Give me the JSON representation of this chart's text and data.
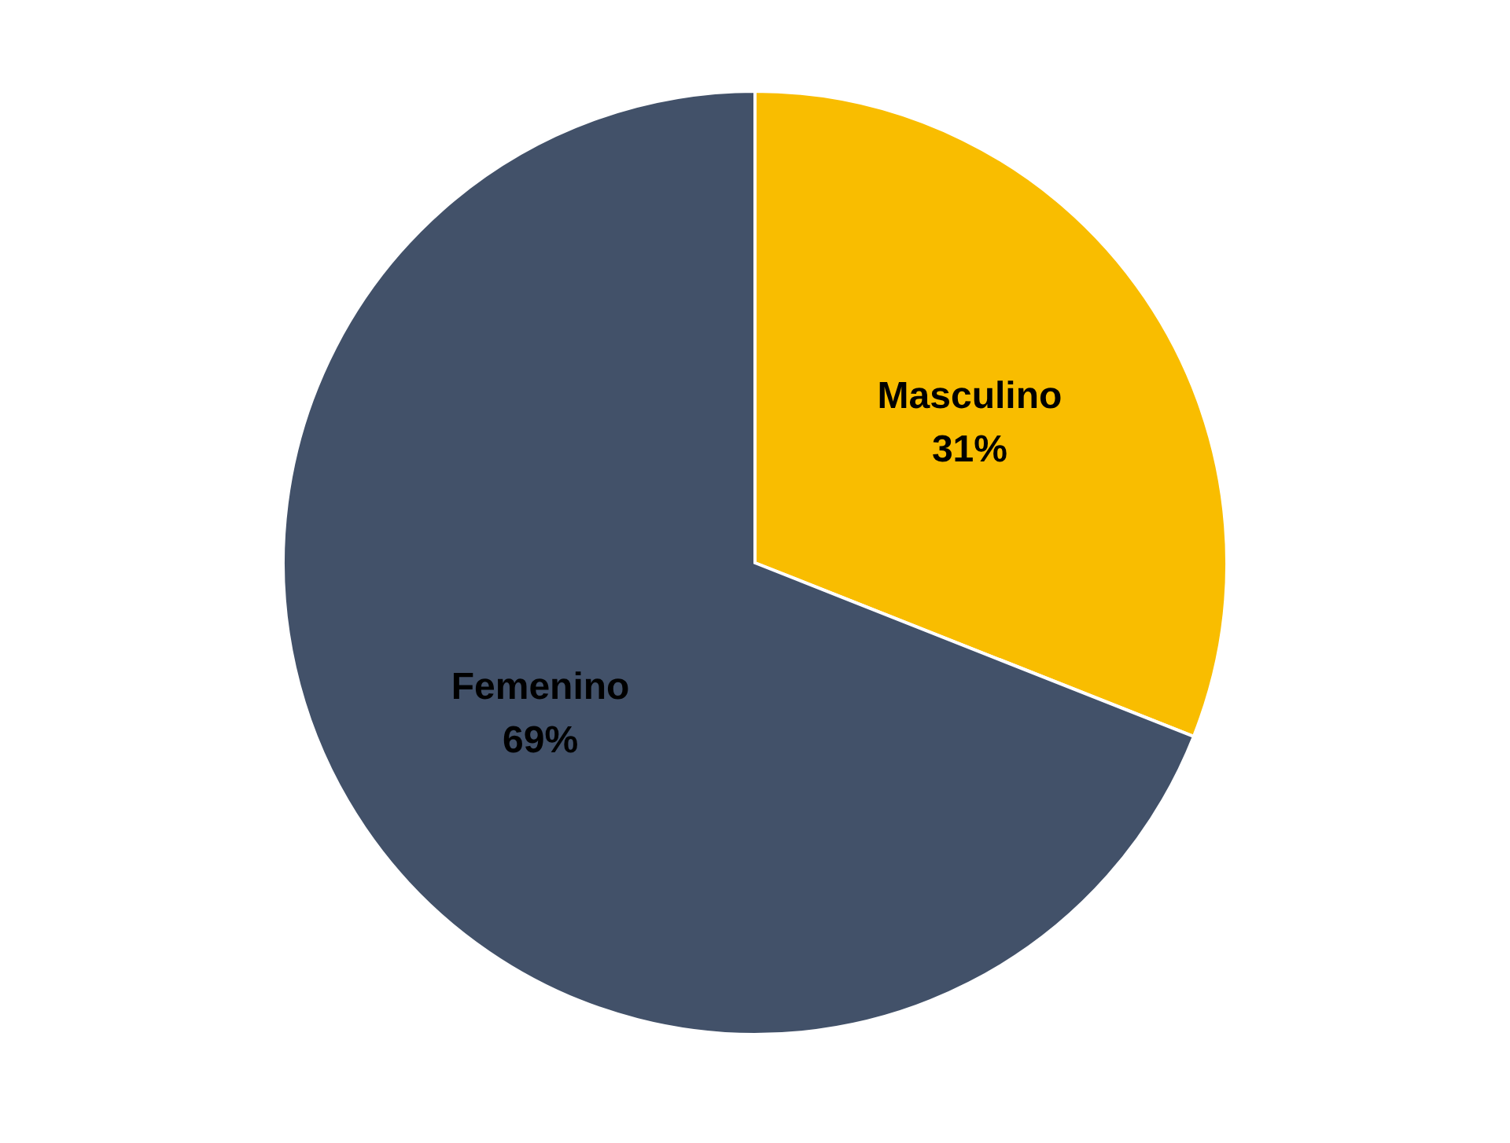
{
  "chart_data": {
    "type": "pie",
    "categories": [
      "Masculino",
      "Femenino"
    ],
    "values": [
      31,
      69
    ],
    "value_labels": [
      "31%",
      "69%"
    ],
    "colors": [
      "#f9bd00",
      "#425169"
    ]
  }
}
